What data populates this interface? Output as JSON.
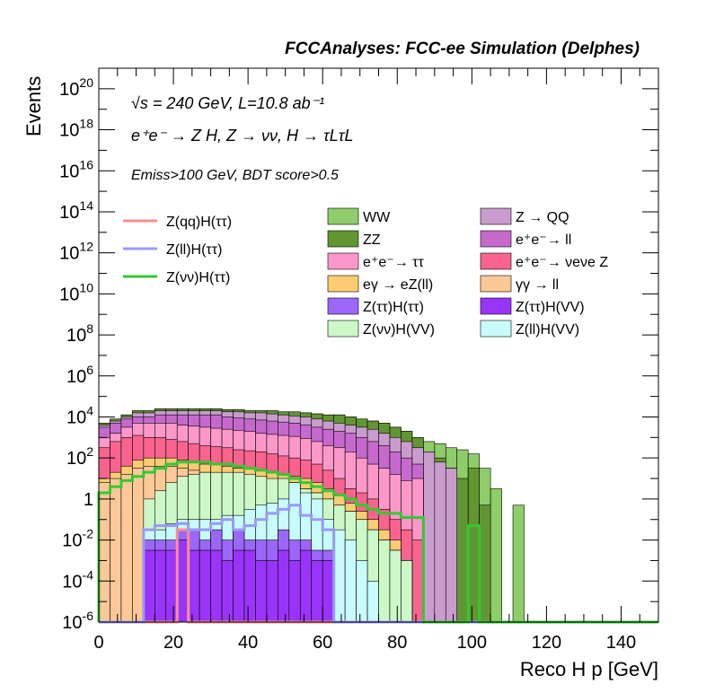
{
  "chart_data": {
    "type": "histogram",
    "title": "FCCAnalyses: FCC-ee Simulation (Delphes)",
    "xlabel": "Reco H p [GeV]",
    "ylabel": "Events",
    "xlim": [
      0,
      150
    ],
    "ylim_exp": [
      -6,
      21
    ],
    "log_y": true,
    "grid": false,
    "legend_position": "top",
    "x_ticks": [
      "0",
      "20",
      "40",
      "60",
      "80",
      "100",
      "120",
      "140"
    ],
    "y_tick_exponents": [
      -6,
      -4,
      -2,
      0,
      2,
      4,
      6,
      8,
      10,
      12,
      14,
      16,
      18,
      20
    ],
    "annotations": {
      "energy": "√s = 240 GeV, L=10.8 ab⁻¹",
      "process": "e⁺e⁻ → Z H, Z → νν, H → τLτL",
      "cuts": "Emiss>100 GeV, BDT score>0.5"
    },
    "bin_edges": [
      0,
      3,
      6,
      9,
      12,
      15,
      18,
      21,
      24,
      27,
      30,
      33,
      36,
      39,
      42,
      45,
      48,
      51,
      54,
      57,
      60,
      63,
      66,
      69,
      72,
      75,
      78,
      81,
      84,
      87,
      90,
      93,
      96,
      99,
      102,
      105,
      108,
      111,
      114,
      117,
      120,
      123,
      126,
      129,
      132,
      135,
      138,
      141,
      144,
      147,
      150
    ],
    "stack_log10": [
      {
        "name": "WW",
        "color": "#8fcc6a",
        "values": [
          3.7,
          3.9,
          4.1,
          4.3,
          4.3,
          4.4,
          4.4,
          4.4,
          4.4,
          4.4,
          4.4,
          4.35,
          4.35,
          4.3,
          4.3,
          4.3,
          4.25,
          4.25,
          4.2,
          4.15,
          4.1,
          4.1,
          4.0,
          3.9,
          3.8,
          3.7,
          3.5,
          3.3,
          3.0,
          2.8,
          2.7,
          2.5,
          2.4,
          2.2,
          1.5,
          0.5,
          -6,
          -0.3,
          -6,
          -6,
          -6,
          -6,
          -6,
          -6,
          -6,
          -6,
          -6,
          -6,
          -6,
          -6
        ]
      },
      {
        "name": "ZZ",
        "color": "#629633",
        "values": [
          3.7,
          3.9,
          4.1,
          4.3,
          4.3,
          4.4,
          4.4,
          4.4,
          4.4,
          4.4,
          4.4,
          4.35,
          4.35,
          4.3,
          4.3,
          4.3,
          4.25,
          4.25,
          4.2,
          4.15,
          4.1,
          4.1,
          4.0,
          3.9,
          3.8,
          3.7,
          3.5,
          3.3,
          3.0,
          2.3,
          2.0,
          1.5,
          1.0,
          1.5,
          -0.3,
          -6,
          -6,
          -6,
          -6,
          -6,
          -6,
          -6,
          -6,
          -6,
          -6,
          -6,
          -6,
          -6,
          -6,
          -6
        ]
      },
      {
        "name": "Z → QQ",
        "color": "#c89ccc",
        "values": [
          3.6,
          3.8,
          4.0,
          4.2,
          4.2,
          4.3,
          4.3,
          4.3,
          4.3,
          4.3,
          4.3,
          4.25,
          4.25,
          4.2,
          4.2,
          4.15,
          4.1,
          4.05,
          4.0,
          3.9,
          3.8,
          3.7,
          3.6,
          3.5,
          3.4,
          3.2,
          3.0,
          2.8,
          2.5,
          2.3,
          1.8,
          1.5,
          -6,
          -6,
          -6,
          -6,
          -6,
          -6,
          -6,
          -6,
          -6,
          -6,
          -6,
          -6,
          -6,
          -6,
          -6,
          -6,
          -6,
          -6
        ]
      },
      {
        "name": "e⁺e⁻ → ll",
        "color": "#c56acc",
        "values": [
          3.5,
          3.7,
          3.9,
          4.0,
          4.0,
          4.1,
          4.1,
          4.1,
          4.1,
          4.1,
          4.1,
          4.0,
          3.95,
          3.9,
          3.85,
          3.8,
          3.75,
          3.7,
          3.6,
          3.5,
          3.4,
          3.3,
          3.2,
          3.0,
          2.8,
          2.6,
          2.3,
          2.0,
          1.7,
          -6,
          -6,
          -6,
          -6,
          -6,
          -6,
          -6,
          -6,
          -6,
          -6,
          -6,
          -6,
          -6,
          -6,
          -6,
          -6,
          -6,
          -6,
          -6,
          -6,
          -6
        ]
      },
      {
        "name": "e⁺e⁻ → ττ",
        "color": "#fb98c9",
        "values": [
          3.0,
          3.2,
          3.5,
          3.7,
          3.7,
          3.7,
          3.7,
          3.6,
          3.55,
          3.5,
          3.45,
          3.4,
          3.35,
          3.3,
          3.2,
          3.15,
          3.1,
          3.05,
          2.95,
          2.8,
          2.6,
          2.5,
          2.3,
          2.0,
          1.7,
          1.5,
          1.2,
          0.9,
          1.0,
          -6,
          -6,
          -6,
          -6,
          -6,
          -6,
          -6,
          -6,
          -6,
          -6,
          -6,
          -6,
          -6,
          -6,
          -6,
          -6,
          -6,
          -6,
          -6,
          -6,
          -6
        ]
      },
      {
        "name": "e⁺e⁻ → νeνe Z",
        "color": "#f8648e",
        "values": [
          2.5,
          2.8,
          3.0,
          3.1,
          3.0,
          3.0,
          2.9,
          2.8,
          2.7,
          2.6,
          2.55,
          2.5,
          2.4,
          2.35,
          2.3,
          2.2,
          2.1,
          2.0,
          1.9,
          1.7,
          1.4,
          1.0,
          0.5,
          0.3,
          0.0,
          -0.5,
          -1.0,
          -1.5,
          -2.0,
          -6,
          -6,
          -6,
          -6,
          -6,
          -6,
          -6,
          -6,
          -6,
          -6,
          -6,
          -6,
          -6,
          -6,
          -6,
          -6,
          -6,
          -6,
          -6,
          -6,
          -6
        ]
      },
      {
        "name": "eγ → eZ(ll)",
        "color": "#fccc72",
        "values": [
          1.0,
          1.3,
          1.6,
          1.9,
          2.0,
          2.0,
          2.0,
          1.9,
          1.8,
          1.7,
          1.65,
          1.6,
          1.5,
          1.45,
          1.4,
          1.3,
          1.2,
          1.1,
          1.0,
          0.8,
          0.5,
          0.2,
          -0.2,
          -0.6,
          -1.0,
          -1.5,
          -2.0,
          -3.0,
          -6,
          -6,
          -6,
          -6,
          -6,
          -6,
          -6,
          -6,
          -6,
          -6,
          -6,
          -6,
          -6,
          -6,
          -6,
          -6,
          -6,
          -6,
          -6,
          -6,
          -6,
          -6
        ]
      },
      {
        "name": "γγ → ll",
        "color": "#fdc897",
        "values": [
          0.8,
          1.0,
          1.2,
          1.5,
          1.6,
          1.6,
          1.6,
          1.5,
          1.4,
          1.3,
          1.25,
          1.2,
          1.1,
          1.05,
          1.0,
          0.9,
          0.8,
          0.7,
          0.5,
          0.3,
          0.0,
          -0.3,
          -0.6,
          -1.0,
          -1.5,
          -2.0,
          -2.5,
          -3.0,
          -6,
          -6,
          -6,
          -6,
          -6,
          -6,
          -6,
          -6,
          -6,
          -6,
          -6,
          -6,
          -6,
          -6,
          -6,
          -6,
          -6,
          -6,
          -6,
          -6,
          -6,
          -6
        ]
      },
      {
        "name": "Z(νν)H(VV)",
        "color": "#ccf8c8",
        "values": [
          -6,
          -6,
          -6,
          -6,
          0.0,
          0.4,
          0.8,
          1.1,
          1.2,
          1.3,
          1.3,
          1.3,
          1.3,
          1.2,
          1.1,
          1.0,
          1.0,
          0.8,
          0.5,
          0.3,
          0.0,
          -0.3,
          -0.6,
          -1.0,
          -1.5,
          -2.0,
          -2.5,
          -3.0,
          -6,
          -6,
          -6,
          -6,
          -6,
          -6,
          -6,
          -6,
          -6,
          -6,
          -6,
          -6,
          -6,
          -6,
          -6,
          -6,
          -6,
          -6,
          -6,
          -6,
          -6,
          -6
        ]
      },
      {
        "name": "Z(ll)H(VV)",
        "color": "#c8fcfc",
        "values": [
          -6,
          -6,
          -6,
          -6,
          -1.5,
          -1.5,
          -1.2,
          -1.0,
          -1.0,
          -1.0,
          -1.0,
          -0.8,
          -0.8,
          -0.5,
          -0.3,
          -0.2,
          0.0,
          0.8,
          0.3,
          0.0,
          -1.0,
          -1.5,
          -2.0,
          -3.0,
          -4.0,
          -6,
          -6,
          -6,
          -6,
          -6,
          -6,
          -6,
          -6,
          -6,
          -6,
          -6,
          -6,
          -6,
          -6,
          -6,
          -6,
          -6,
          -6,
          -6,
          -6,
          -6,
          -6,
          -6,
          -6,
          -6
        ]
      },
      {
        "name": "Z(ττ)H(ττ)",
        "color": "#9c66f8",
        "values": [
          -6,
          -6,
          -6,
          -6,
          -2.0,
          -2.0,
          -2.0,
          -1.5,
          -1.5,
          -2.0,
          -1.5,
          -2.0,
          -1.5,
          -2.0,
          -2.0,
          -2.0,
          -1.5,
          -2.0,
          -2.0,
          -2.5,
          -2.5,
          -6,
          -6,
          -6,
          -6,
          -6,
          -6,
          -6,
          -6,
          -6,
          -6,
          -6,
          -6,
          -6,
          -6,
          -6,
          -6,
          -6,
          -6,
          -6,
          -6,
          -6,
          -6,
          -6,
          -6,
          -6,
          -6,
          -6,
          -6,
          -6
        ]
      },
      {
        "name": "Z(ττ)H(VV)",
        "color": "#9935f8",
        "values": [
          -6,
          -6,
          -6,
          -6,
          -2.5,
          -2.5,
          -2.5,
          -2.0,
          -2.5,
          -2.5,
          -2.5,
          -3.0,
          -2.5,
          -2.5,
          -3.0,
          -3.0,
          -2.5,
          -3.0,
          -2.5,
          -3.0,
          -3.0,
          -6,
          -6,
          -6,
          -6,
          -6,
          -6,
          -6,
          -6,
          -6,
          -6,
          -6,
          -6,
          -6,
          -6,
          -6,
          -6,
          -6,
          -6,
          -6,
          -6,
          -6,
          -6,
          -6,
          -6,
          -6,
          -6,
          -6,
          -6,
          -6
        ]
      }
    ],
    "lines_log10": [
      {
        "name": "Z(qq)H(ττ)",
        "color": "#fa8e8e",
        "values": [
          -6,
          -6,
          -6,
          -6,
          -6,
          -6,
          -6,
          -1.5,
          -6,
          -6,
          -6,
          -6,
          -6,
          -6,
          -6,
          -6,
          -6,
          -6,
          -6,
          -6,
          -6,
          -6,
          -6,
          -6,
          -6,
          -6,
          -6,
          -6,
          -6,
          -6,
          -6,
          -6,
          -6,
          -6,
          -6,
          -6,
          -6,
          -6,
          -6,
          -6,
          -6,
          -6,
          -6,
          -6,
          -6,
          -6,
          -6,
          -6,
          -6,
          -6
        ]
      },
      {
        "name": "Z(ll)H(ττ)",
        "color": "#9999f8",
        "values": [
          -6,
          -6,
          -6,
          -6,
          -1.5,
          -1.3,
          -1.3,
          -1.2,
          -1.5,
          -1.5,
          -1.2,
          -1.0,
          -1.5,
          -1.3,
          -1.0,
          -0.7,
          -0.5,
          -0.3,
          -0.8,
          -1.0,
          -1.5,
          -6,
          -6,
          -6,
          -6,
          -6,
          -6,
          -6,
          -6,
          -6,
          -6,
          -6,
          -6,
          -6,
          -6,
          -6,
          -6,
          -6,
          -6,
          -6,
          -6,
          -6,
          -6,
          -6,
          -6,
          -6,
          -6,
          -6,
          -6,
          -6
        ]
      },
      {
        "name": "Z(νν)H(ττ)",
        "color": "#33c833",
        "values": [
          0.3,
          0.6,
          0.9,
          1.1,
          1.3,
          1.5,
          1.7,
          1.8,
          1.8,
          1.8,
          1.7,
          1.7,
          1.6,
          1.5,
          1.4,
          1.3,
          1.2,
          1.0,
          0.8,
          0.6,
          0.4,
          0.2,
          0.0,
          -0.3,
          -0.5,
          -0.7,
          -0.7,
          -0.9,
          -0.9,
          -6,
          -6,
          -6,
          -6,
          -1.3,
          -6,
          -6,
          -6,
          -6,
          -6,
          -6,
          -6,
          -6,
          -6,
          -6,
          -6,
          -6,
          -6,
          -6,
          -6,
          -6
        ]
      }
    ],
    "legend_lines": [
      "Z(qq)H(ττ)",
      "Z(ll)H(ττ)",
      "Z(νν)H(ττ)"
    ],
    "legend_fills_left": [
      "WW",
      "ZZ",
      "e⁺e⁻→ ττ",
      "eγ → eZ(ll)",
      "Z(ττ)H(ττ)",
      "Z(νν)H(VV)"
    ],
    "legend_fills_right": [
      "Z → QQ",
      "e⁺e⁻→ ll",
      "e⁺e⁻→ νeνe Z",
      "γγ → ll",
      "Z(ττ)H(VV)",
      "Z(ll)H(VV)"
    ]
  }
}
